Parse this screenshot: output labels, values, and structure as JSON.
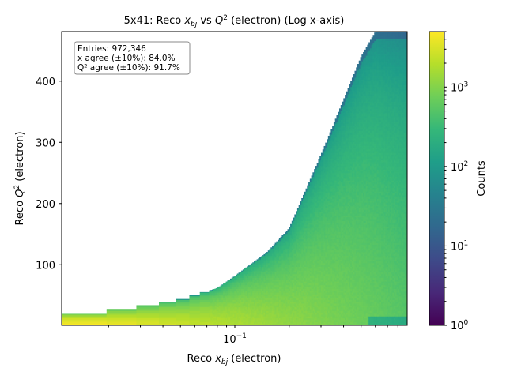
{
  "chart_data": {
    "type": "heatmap",
    "title_parts": {
      "prefix": "5x41: Reco ",
      "x_sym": "x",
      "x_sub": "bj",
      "mid": " vs ",
      "q_sym": "Q",
      "q_sup": "2",
      "suffix": " (electron) (Log x-axis)"
    },
    "xlabel_parts": {
      "prefix": "Reco ",
      "sym": "x",
      "sub": "bj",
      "suffix": " (electron)"
    },
    "ylabel_parts": {
      "prefix": "Reco ",
      "sym": "Q",
      "sup": "2",
      "suffix": " (electron)"
    },
    "x_scale": "log",
    "xlim": [
      0.011,
      0.9
    ],
    "ylim": [
      1,
      481
    ],
    "x_ticks": [
      {
        "value": 0.1,
        "base": "10",
        "exp": "−1"
      }
    ],
    "y_ticks": [
      {
        "value": 100,
        "label": "100"
      },
      {
        "value": 200,
        "label": "200"
      },
      {
        "value": 300,
        "label": "300"
      },
      {
        "value": 400,
        "label": "400"
      }
    ],
    "colorbar": {
      "label": "Counts",
      "scale": "log",
      "range": [
        1,
        5000
      ],
      "colormap": "viridis",
      "ticks": [
        {
          "value": 1,
          "base": "10",
          "exp": "0"
        },
        {
          "value": 10,
          "base": "10",
          "exp": "1"
        },
        {
          "value": 100,
          "base": "10",
          "exp": "2"
        },
        {
          "value": 1000,
          "base": "10",
          "exp": "3"
        }
      ]
    },
    "stats_box": [
      "Entries: 972,346",
      "x agree (±10%): 84.0%",
      "Q² agree (±10%): 91.7%"
    ],
    "kinematic_boundary_approx": {
      "x": [
        0.011,
        0.02,
        0.03,
        0.05,
        0.08,
        0.1,
        0.15,
        0.2,
        0.3,
        0.4,
        0.5,
        0.6
      ],
      "q2_max": [
        15,
        25,
        32,
        43,
        62,
        82,
        120,
        160,
        280,
        370,
        440,
        481
      ]
    },
    "grid": false
  }
}
